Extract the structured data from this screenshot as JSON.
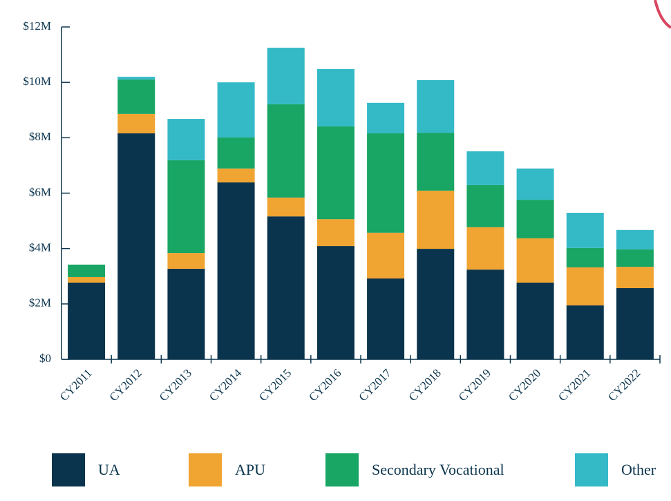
{
  "chart_data": {
    "type": "stacked_bar",
    "categories": [
      "CY2011",
      "CY2012",
      "CY2013",
      "CY2014",
      "CY2015",
      "CY2016",
      "CY2017",
      "CY2018",
      "CY2019",
      "CY2020",
      "CY2021",
      "CY2022"
    ],
    "series": [
      {
        "name": "UA",
        "color": "#0a344d",
        "values": [
          2770000,
          8160000,
          3270000,
          6390000,
          5160000,
          4090000,
          2920000,
          3990000,
          3240000,
          2770000,
          1950000,
          2570000
        ]
      },
      {
        "name": "APU",
        "color": "#f0a431",
        "values": [
          200000,
          700000,
          570000,
          500000,
          680000,
          970000,
          1650000,
          2100000,
          1530000,
          1600000,
          1370000,
          770000
        ]
      },
      {
        "name": "Secondary Vocational",
        "color": "#19a564",
        "values": [
          450000,
          1240000,
          3350000,
          1120000,
          3370000,
          3350000,
          3590000,
          2090000,
          1520000,
          1390000,
          700000,
          630000
        ]
      },
      {
        "name": "Other",
        "color": "#34b9c7",
        "values": [
          0,
          100000,
          1490000,
          1990000,
          2040000,
          2070000,
          1100000,
          1900000,
          1220000,
          1130000,
          1270000,
          700000
        ]
      }
    ],
    "ylim": [
      0,
      12000000
    ],
    "yticks": [
      {
        "value": 0,
        "label": "$0"
      },
      {
        "value": 2000000,
        "label": "$2M"
      },
      {
        "value": 4000000,
        "label": "$4M"
      },
      {
        "value": 6000000,
        "label": "$6M"
      },
      {
        "value": 8000000,
        "label": "$8M"
      },
      {
        "value": 10000000,
        "label": "$10M"
      },
      {
        "value": 12000000,
        "label": "$12M"
      }
    ]
  }
}
